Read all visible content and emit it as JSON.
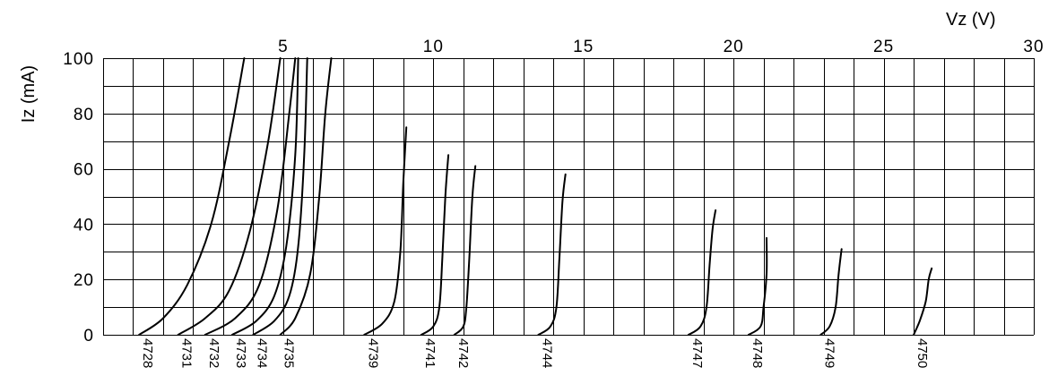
{
  "chart_data": {
    "type": "line",
    "title": "",
    "xlabel": "Vz (V)",
    "ylabel": "Iz (mA)",
    "xlim": [
      -1,
      30
    ],
    "ylim": [
      0,
      100
    ],
    "x_ticks": [
      5,
      10,
      15,
      20,
      25,
      30
    ],
    "y_ticks": [
      0,
      20,
      40,
      60,
      80,
      100
    ],
    "x_grid_step": 1,
    "y_grid_step": 10,
    "grid": true,
    "series": [
      {
        "name": "4728",
        "label_x": 0.2,
        "points": [
          [
            0.2,
            0
          ],
          [
            1.0,
            6
          ],
          [
            1.8,
            18
          ],
          [
            2.6,
            40
          ],
          [
            3.2,
            70
          ],
          [
            3.7,
            100
          ]
        ]
      },
      {
        "name": "4731",
        "label_x": 1.5,
        "points": [
          [
            1.5,
            0
          ],
          [
            2.4,
            6
          ],
          [
            3.2,
            16
          ],
          [
            3.9,
            38
          ],
          [
            4.5,
            70
          ],
          [
            4.9,
            100
          ]
        ]
      },
      {
        "name": "4732",
        "label_x": 2.4,
        "points": [
          [
            2.4,
            0
          ],
          [
            3.4,
            6
          ],
          [
            4.2,
            18
          ],
          [
            4.8,
            45
          ],
          [
            5.2,
            80
          ],
          [
            5.4,
            100
          ]
        ]
      },
      {
        "name": "4733",
        "label_x": 3.3,
        "points": [
          [
            3.3,
            0
          ],
          [
            4.1,
            5
          ],
          [
            4.7,
            14
          ],
          [
            5.1,
            32
          ],
          [
            5.4,
            65
          ],
          [
            5.5,
            100
          ]
        ]
      },
      {
        "name": "4734",
        "label_x": 4.0,
        "points": [
          [
            4.0,
            0
          ],
          [
            4.7,
            5
          ],
          [
            5.2,
            14
          ],
          [
            5.5,
            32
          ],
          [
            5.7,
            65
          ],
          [
            5.8,
            100
          ]
        ]
      },
      {
        "name": "4735",
        "label_x": 4.9,
        "points": [
          [
            4.9,
            0
          ],
          [
            5.4,
            6
          ],
          [
            5.9,
            22
          ],
          [
            6.2,
            50
          ],
          [
            6.4,
            80
          ],
          [
            6.6,
            100
          ]
        ]
      },
      {
        "name": "4739",
        "label_x": 7.7,
        "points": [
          [
            7.7,
            0
          ],
          [
            8.3,
            4
          ],
          [
            8.7,
            12
          ],
          [
            8.9,
            30
          ],
          [
            9.0,
            55
          ],
          [
            9.1,
            75
          ]
        ]
      },
      {
        "name": "4741",
        "label_x": 9.6,
        "points": [
          [
            9.6,
            0
          ],
          [
            10.0,
            3
          ],
          [
            10.2,
            10
          ],
          [
            10.3,
            28
          ],
          [
            10.4,
            50
          ],
          [
            10.5,
            65
          ]
        ]
      },
      {
        "name": "4742",
        "label_x": 10.7,
        "points": [
          [
            10.7,
            0
          ],
          [
            11.0,
            3
          ],
          [
            11.1,
            10
          ],
          [
            11.2,
            28
          ],
          [
            11.3,
            50
          ],
          [
            11.4,
            61
          ]
        ]
      },
      {
        "name": "4744",
        "label_x": 13.5,
        "points": [
          [
            13.5,
            0
          ],
          [
            13.9,
            3
          ],
          [
            14.1,
            10
          ],
          [
            14.2,
            28
          ],
          [
            14.3,
            48
          ],
          [
            14.4,
            58
          ]
        ]
      },
      {
        "name": "4747",
        "label_x": 18.5,
        "points": [
          [
            18.5,
            0
          ],
          [
            18.9,
            3
          ],
          [
            19.1,
            10
          ],
          [
            19.2,
            25
          ],
          [
            19.3,
            38
          ],
          [
            19.4,
            45
          ]
        ]
      },
      {
        "name": "4748",
        "label_x": 20.5,
        "points": [
          [
            20.5,
            0
          ],
          [
            20.9,
            3
          ],
          [
            21.0,
            10
          ],
          [
            21.1,
            22
          ],
          [
            21.1,
            35
          ]
        ]
      },
      {
        "name": "4749",
        "label_x": 22.9,
        "points": [
          [
            22.9,
            0
          ],
          [
            23.2,
            3
          ],
          [
            23.4,
            10
          ],
          [
            23.5,
            22
          ],
          [
            23.6,
            31
          ]
        ]
      },
      {
        "name": "4750",
        "label_x": 26.0,
        "points": [
          [
            26.0,
            0
          ],
          [
            26.2,
            5
          ],
          [
            26.4,
            12
          ],
          [
            26.5,
            20
          ],
          [
            26.6,
            24
          ]
        ]
      }
    ]
  }
}
